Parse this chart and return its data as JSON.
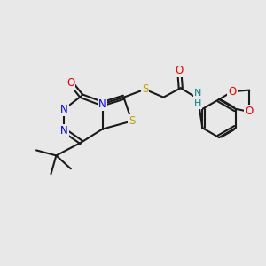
{
  "background_color": "#e8e8e8",
  "bond_color": "#1a1a1a",
  "atom_colors": {
    "N": "#0000ee",
    "S": "#b8a000",
    "O": "#ee0000",
    "NH": "#008080",
    "C": "#1a1a1a"
  },
  "figsize": [
    3.0,
    3.0
  ],
  "dpi": 100,
  "lw": 1.5,
  "fs": 8.5
}
